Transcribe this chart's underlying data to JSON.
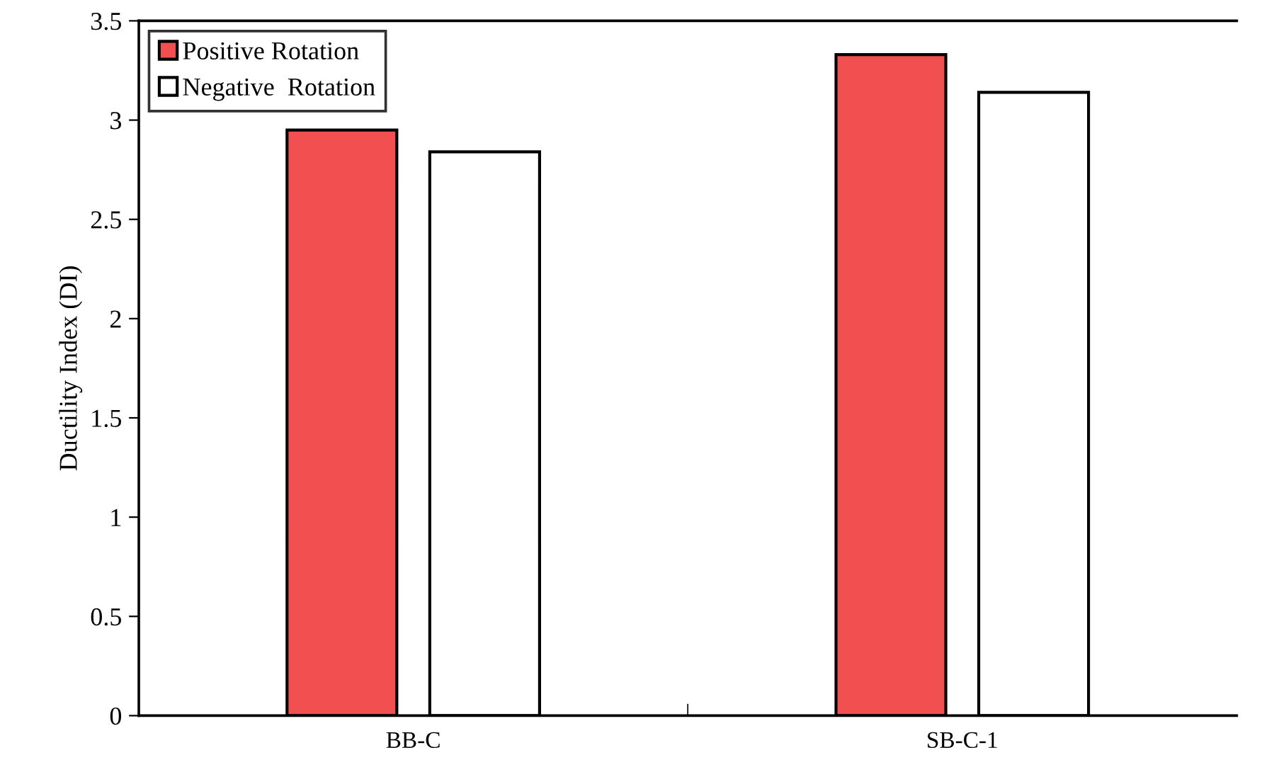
{
  "chart_data": {
    "type": "bar",
    "ylabel": "Ductility Index (DI)",
    "categories": [
      "BB-C",
      "SB-C-1"
    ],
    "series": [
      {
        "name": "Positive Rotation",
        "color": "#f25050",
        "values": [
          2.95,
          3.33
        ]
      },
      {
        "name": "Negative  Rotation",
        "color": "#ffffff",
        "values": [
          2.84,
          3.14
        ]
      }
    ],
    "ylim": [
      0,
      3.5
    ],
    "yticks": [
      0,
      0.5,
      1,
      1.5,
      2,
      2.5,
      3,
      3.5
    ],
    "grid": false,
    "legend": "top left"
  }
}
